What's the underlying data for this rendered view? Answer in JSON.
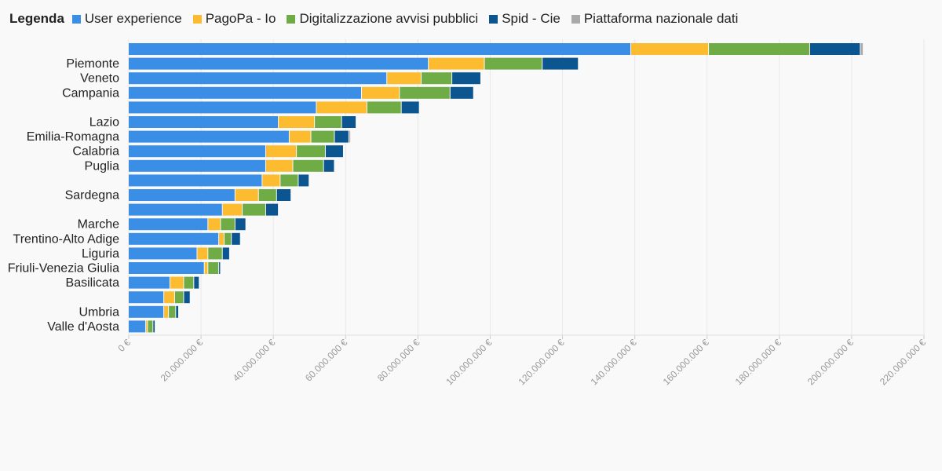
{
  "chart_data": {
    "type": "bar",
    "orientation": "horizontal",
    "stacked": true,
    "legend_title": "Legenda",
    "legend_position": "top-left",
    "grid": true,
    "xlim": [
      0,
      220000000
    ],
    "x_ticks": [
      0,
      20000000,
      40000000,
      60000000,
      80000000,
      100000000,
      120000000,
      140000000,
      160000000,
      180000000,
      200000000,
      220000000
    ],
    "x_tick_labels": [
      "0 €",
      "20.000.000 €",
      "40.000.000 €",
      "60.000.000 €",
      "80.000.000 €",
      "100.000.000 €",
      "120.000.000 €",
      "140.000.000 €",
      "160.000.000 €",
      "180.000.000 €",
      "200.000.000 €",
      "220.000.000 €"
    ],
    "categories": [
      "",
      "Piemonte",
      "Veneto",
      "Campania",
      "",
      "Lazio",
      "Emilia-Romagna",
      "Calabria",
      "Puglia",
      "",
      "Sardegna",
      "",
      "Marche",
      "Trentino-Alto Adige",
      "Liguria",
      "Friuli-Venezia Giulia",
      "Basilicata",
      "",
      "Umbria",
      "Valle d'Aosta"
    ],
    "series": [
      {
        "name": "User experience",
        "color": "#3a8ee6",
        "values": [
          139000000,
          83000000,
          71500000,
          64500000,
          52000000,
          41500000,
          44500000,
          38000000,
          38000000,
          37000000,
          29500000,
          26000000,
          22000000,
          25000000,
          19000000,
          21000000,
          11500000,
          9800000,
          9800000,
          4800000
        ]
      },
      {
        "name": "PagoPa - Io",
        "color": "#fdbb30",
        "values": [
          21500000,
          15500000,
          9500000,
          10500000,
          14000000,
          10000000,
          6000000,
          8500000,
          7500000,
          5000000,
          6500000,
          5500000,
          3500000,
          1500000,
          3000000,
          1000000,
          3800000,
          3000000,
          1300000,
          500000
        ]
      },
      {
        "name": "Digitalizzazione avvisi pubblici",
        "color": "#6fac45",
        "values": [
          28000000,
          16000000,
          8500000,
          14000000,
          9500000,
          7500000,
          6500000,
          8000000,
          8500000,
          5000000,
          5000000,
          6500000,
          4000000,
          2000000,
          4000000,
          3000000,
          2800000,
          2500000,
          2000000,
          1500000
        ]
      },
      {
        "name": "Spid - Cie",
        "color": "#0b5690",
        "values": [
          14000000,
          10000000,
          8000000,
          6500000,
          5000000,
          4000000,
          4000000,
          5000000,
          3000000,
          3000000,
          4000000,
          3500000,
          3000000,
          2500000,
          2000000,
          500000,
          1500000,
          1800000,
          800000,
          600000
        ]
      },
      {
        "name": "Piattaforma nazionale dati",
        "color": "#aaaaaa",
        "values": [
          800000,
          0,
          0,
          0,
          0,
          0,
          500000,
          0,
          0,
          0,
          0,
          0,
          0,
          0,
          0,
          0,
          0,
          0,
          0,
          0
        ]
      }
    ]
  }
}
